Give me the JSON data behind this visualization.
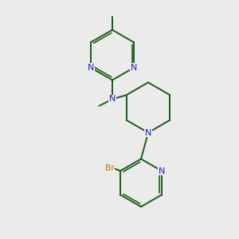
{
  "bg_color": "#ebebeb",
  "bond_color": "#1a5c1a",
  "N_color": "#2020cc",
  "Br_color": "#cc6600",
  "line_width": 1.4,
  "figsize": [
    3.0,
    3.0
  ],
  "dpi": 100,
  "xlim": [
    0,
    10
  ],
  "ylim": [
    0,
    10
  ]
}
